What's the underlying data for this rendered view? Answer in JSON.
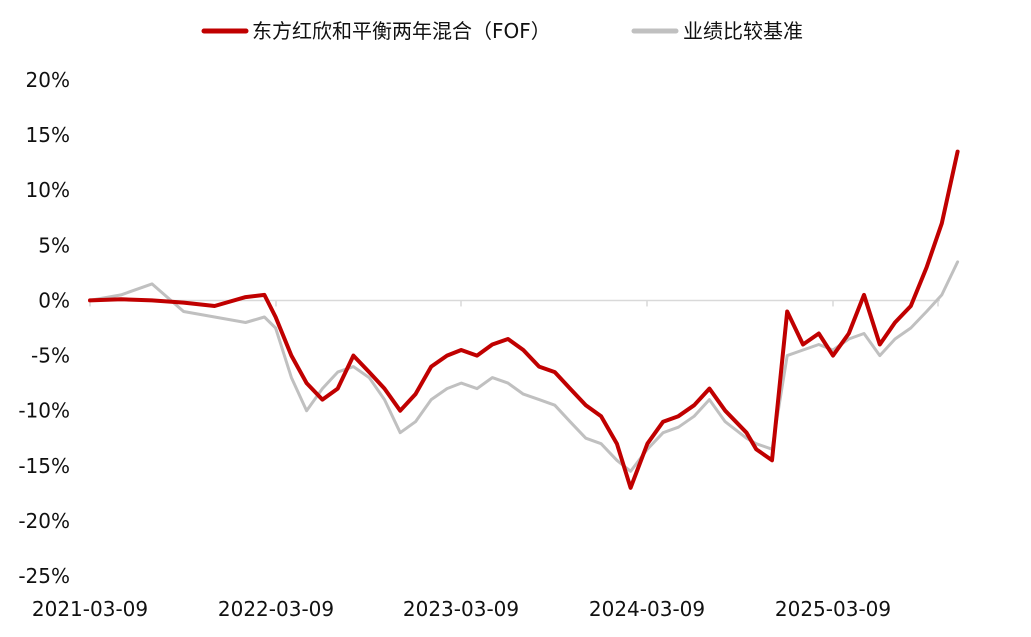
{
  "chart_data": {
    "type": "line",
    "title": "",
    "xlabel": "",
    "ylabel": "",
    "x_tick_labels": [
      "2021-03-09",
      "2022-03-09",
      "2023-03-09",
      "2024-03-09",
      "2025-03-09"
    ],
    "y_tick_labels": [
      "20%",
      "15%",
      "10%",
      "5%",
      "0%",
      "-5%",
      "-10%",
      "-15%",
      "-20%",
      "-25%"
    ],
    "ylim": [
      -25,
      20
    ],
    "y_unit": "%",
    "legend_position": "top-center",
    "grid": false,
    "x": [
      "2021-03-09",
      "2021-05-09",
      "2021-07-09",
      "2021-09-09",
      "2021-11-09",
      "2022-01-09",
      "2022-02-15",
      "2022-03-09",
      "2022-04-09",
      "2022-05-09",
      "2022-06-09",
      "2022-07-09",
      "2022-08-09",
      "2022-09-09",
      "2022-10-09",
      "2022-11-09",
      "2022-12-09",
      "2023-01-09",
      "2023-02-09",
      "2023-03-09",
      "2023-04-09",
      "2023-05-09",
      "2023-06-09",
      "2023-07-09",
      "2023-08-09",
      "2023-09-09",
      "2023-10-09",
      "2023-11-09",
      "2023-12-09",
      "2024-01-09",
      "2024-02-05",
      "2024-03-09",
      "2024-04-09",
      "2024-05-09",
      "2024-06-09",
      "2024-07-09",
      "2024-08-09",
      "2024-09-20",
      "2024-10-09",
      "2024-11-09",
      "2024-12-09",
      "2025-01-09",
      "2025-02-09",
      "2025-03-09",
      "2025-04-09",
      "2025-05-09",
      "2025-06-09",
      "2025-07-09",
      "2025-08-09",
      "2025-09-09",
      "2025-10-09",
      "2025-11-09"
    ],
    "series": [
      {
        "name": "东方红欣和平衡两年混合（FOF）",
        "color": "#c00000",
        "values": [
          0.0,
          0.1,
          0.0,
          -0.2,
          -0.5,
          0.3,
          0.5,
          -1.5,
          -5.0,
          -7.5,
          -9.0,
          -8.0,
          -5.0,
          -6.5,
          -8.0,
          -10.0,
          -8.5,
          -6.0,
          -5.0,
          -4.5,
          -5.0,
          -4.0,
          -3.5,
          -4.5,
          -6.0,
          -6.5,
          -8.0,
          -9.5,
          -10.5,
          -13.0,
          -17.0,
          -13.0,
          -11.0,
          -10.5,
          -9.5,
          -8.0,
          -10.0,
          -12.0,
          -13.5,
          -14.5,
          -1.0,
          -4.0,
          -3.0,
          -5.0,
          -3.0,
          0.5,
          -4.0,
          -2.0,
          -0.5,
          3.0,
          7.0,
          13.5
        ]
      },
      {
        "name": "业绩比较基准",
        "color": "#c0c0c0",
        "values": [
          0.0,
          0.5,
          1.5,
          -1.0,
          -1.5,
          -2.0,
          -1.5,
          -2.5,
          -7.0,
          -10.0,
          -8.0,
          -6.5,
          -6.0,
          -7.0,
          -9.0,
          -12.0,
          -11.0,
          -9.0,
          -8.0,
          -7.5,
          -8.0,
          -7.0,
          -7.5,
          -8.5,
          -9.0,
          -9.5,
          -11.0,
          -12.5,
          -13.0,
          -14.5,
          -15.5,
          -13.5,
          -12.0,
          -11.5,
          -10.5,
          -9.0,
          -11.0,
          -12.5,
          -13.0,
          -13.5,
          -5.0,
          -4.5,
          -4.0,
          -4.5,
          -3.5,
          -3.0,
          -5.0,
          -3.5,
          -2.5,
          -1.0,
          0.5,
          3.5
        ]
      }
    ]
  }
}
